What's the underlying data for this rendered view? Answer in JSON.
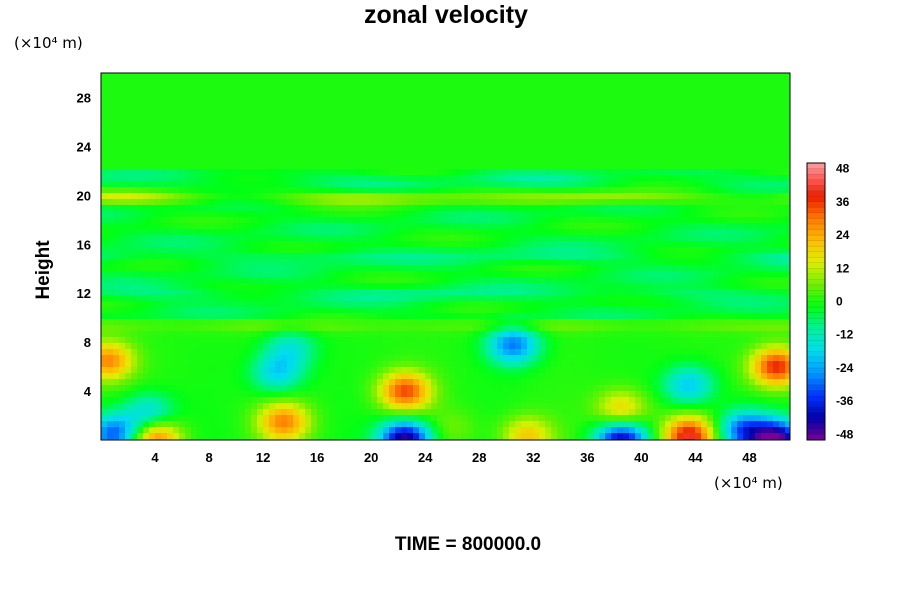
{
  "chart_data": {
    "type": "heatmap",
    "title": "zonal velocity",
    "ylabel": "Height",
    "xlabel": "",
    "x_unit": "(×10⁴ m)",
    "y_unit": "(×10⁴ m)",
    "footer": "TIME = 800000.0",
    "xlim": [
      0,
      51
    ],
    "ylim": [
      0,
      30
    ],
    "x_ticks": [
      4,
      8,
      12,
      16,
      20,
      24,
      28,
      32,
      36,
      40,
      44,
      48
    ],
    "x_tick_labels": [
      "4",
      "8",
      "12",
      "16",
      "20",
      "24",
      "28",
      "32",
      "36",
      "40",
      "44",
      "48"
    ],
    "y_ticks": [
      4,
      8,
      12,
      16,
      20,
      24,
      28
    ],
    "y_tick_labels": [
      "4",
      "8",
      "12",
      "16",
      "20",
      "24",
      "28"
    ],
    "colorbar": {
      "min": -50,
      "max": 50,
      "tick_values": [
        48,
        36,
        24,
        12,
        0,
        -12,
        -24,
        -36,
        -48
      ],
      "tick_labels": [
        "48",
        "36",
        "24",
        "12",
        "0",
        "-12",
        "-24",
        "-36",
        "-48"
      ]
    },
    "features": [
      {
        "x": 0.5,
        "y": 6.5,
        "value": 28
      },
      {
        "x": 1.0,
        "y": 0.5,
        "value": -32
      },
      {
        "x": 3.5,
        "y": 2.2,
        "value": -18
      },
      {
        "x": 4.0,
        "y": 0.1,
        "value": 30
      },
      {
        "x": 13.5,
        "y": 1.5,
        "value": 28
      },
      {
        "x": 13.0,
        "y": 5.5,
        "value": -18
      },
      {
        "x": 14.0,
        "y": 7.5,
        "value": -14
      },
      {
        "x": 22.5,
        "y": 4.0,
        "value": 34
      },
      {
        "x": 22.5,
        "y": 0.0,
        "value": -48
      },
      {
        "x": 30.5,
        "y": 7.8,
        "value": -28
      },
      {
        "x": 31.5,
        "y": 0.3,
        "value": 20
      },
      {
        "x": 38.5,
        "y": 2.5,
        "value": 20
      },
      {
        "x": 38.5,
        "y": 0.0,
        "value": -42
      },
      {
        "x": 43.5,
        "y": 0.3,
        "value": 40
      },
      {
        "x": 43.5,
        "y": 4.5,
        "value": -20
      },
      {
        "x": 50.0,
        "y": 6.0,
        "value": 38
      },
      {
        "x": 50.0,
        "y": 0.0,
        "value": -48
      },
      {
        "x": 47.5,
        "y": 0.8,
        "value": -30
      },
      {
        "x": 26.0,
        "y": 1.0,
        "value": 6
      }
    ],
    "layers": [
      {
        "y": 19.8,
        "value": 14
      },
      {
        "y": 21.2,
        "value": -4
      },
      {
        "y": 15.0,
        "value": -5
      },
      {
        "y": 12.0,
        "value": -5
      },
      {
        "y": 9.3,
        "value": 6
      }
    ]
  }
}
